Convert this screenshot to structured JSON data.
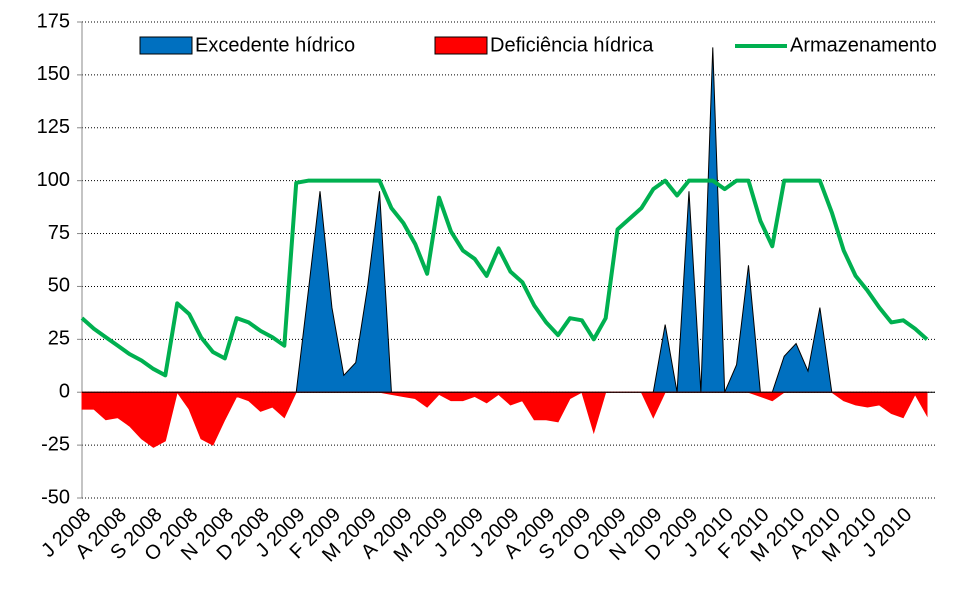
{
  "chart_data": {
    "type": "area",
    "categories": [
      "J 2008",
      null,
      null,
      "A 2008",
      null,
      null,
      "S 2008",
      null,
      null,
      "O 2008",
      null,
      null,
      "N 2008",
      null,
      null,
      "D 2008",
      null,
      null,
      "J 2009",
      null,
      null,
      "F 2009",
      null,
      null,
      "M 2009",
      null,
      null,
      "A 2009",
      null,
      null,
      "M 2009",
      null,
      null,
      "J 2009",
      null,
      null,
      "J 2009",
      null,
      null,
      "A 2009",
      null,
      null,
      "S 2009",
      null,
      null,
      "O 2009",
      null,
      null,
      "N 2009",
      null,
      null,
      "D 2009",
      null,
      null,
      "J 2010",
      null,
      null,
      "F 2010",
      null,
      null,
      "M 2010",
      null,
      null,
      "A 2010",
      null,
      null,
      "M 2010",
      null,
      null,
      "J 2010",
      null,
      null
    ],
    "series": [
      {
        "name": "Excedente hídrico",
        "type": "area",
        "color": "#0070c0",
        "values": [
          0,
          0,
          0,
          0,
          0,
          0,
          0,
          0,
          0,
          0,
          0,
          0,
          0,
          0,
          0,
          0,
          0,
          0,
          0,
          47,
          95,
          40,
          8,
          14,
          50,
          95,
          0,
          0,
          0,
          0,
          0,
          0,
          0,
          0,
          0,
          0,
          0,
          0,
          0,
          0,
          0,
          0,
          0,
          0,
          0,
          0,
          0,
          0,
          0,
          32,
          0,
          95,
          0,
          163,
          0,
          13,
          60,
          0,
          0,
          17,
          23,
          10,
          40,
          0,
          0,
          0,
          0,
          0,
          0,
          0,
          0,
          0
        ]
      },
      {
        "name": "Deficiência hídrica",
        "type": "area",
        "color": "#ff0000",
        "values": [
          -8,
          -8,
          -13,
          -12,
          -16,
          -22,
          -26,
          -23,
          0,
          -8,
          -22,
          -25,
          -13,
          -2,
          -4,
          -9,
          -7,
          -12,
          0,
          0,
          0,
          0,
          0,
          0,
          0,
          0,
          -1,
          -2,
          -3,
          -7,
          -1,
          -4,
          -4,
          -2,
          -5,
          -1,
          -6,
          -4,
          -13,
          -13,
          -14,
          -3,
          0,
          -19,
          0,
          0,
          0,
          0,
          -12,
          0,
          0,
          0,
          0,
          0,
          0,
          0,
          0,
          -2,
          -4,
          0,
          0,
          0,
          0,
          0,
          -4,
          -6,
          -7,
          -6,
          -10,
          -12,
          -1,
          -11
        ]
      },
      {
        "name": "Armazenamento",
        "type": "line",
        "color": "#00b050",
        "values": [
          35,
          30,
          26,
          22,
          18,
          15,
          11,
          8,
          42,
          37,
          26,
          19,
          16,
          35,
          33,
          29,
          26,
          22,
          99,
          100,
          100,
          100,
          100,
          100,
          100,
          100,
          87,
          80,
          70,
          56,
          92,
          76,
          67,
          63,
          55,
          68,
          57,
          52,
          41,
          33,
          27,
          35,
          34,
          25,
          35,
          77,
          82,
          87,
          96,
          100,
          93,
          100,
          100,
          100,
          96,
          100,
          100,
          81,
          69,
          100,
          100,
          100,
          100,
          85,
          67,
          55,
          48,
          40,
          33,
          34,
          30,
          25
        ]
      }
    ],
    "ylim": [
      -50,
      175
    ],
    "yticks": [
      -50,
      -25,
      0,
      25,
      50,
      75,
      100,
      125,
      150,
      175
    ],
    "grid": true
  }
}
